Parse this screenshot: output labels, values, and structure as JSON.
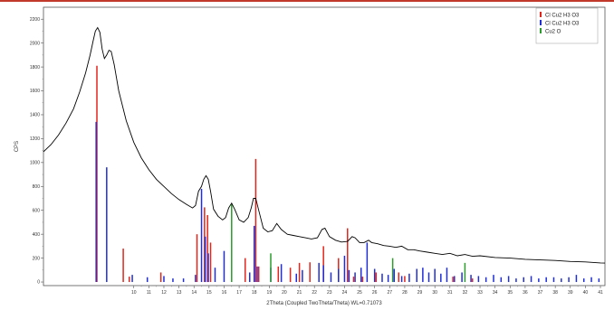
{
  "chart_data": {
    "type": "line",
    "xlabel": "2Theta (Coupled TwoTheta/Theta) WL=0.71073",
    "ylabel": "CPS",
    "xlim": [
      4,
      41.3
    ],
    "ylim": [
      -30,
      2300
    ],
    "xticks": [
      10,
      11,
      12,
      13,
      14,
      15,
      16,
      17,
      18,
      19,
      20,
      21,
      22,
      23,
      24,
      25,
      26,
      27,
      28,
      29,
      30,
      31,
      32,
      33,
      34,
      35,
      36,
      37,
      38,
      39,
      40,
      41
    ],
    "yticks": [
      0,
      200,
      400,
      600,
      800,
      1000,
      1200,
      1400,
      1600,
      1800,
      2000,
      2200
    ],
    "grid": false,
    "legend_position": "top-right",
    "profile": {
      "name": "",
      "color": "#000000",
      "points": [
        [
          4.0,
          1090
        ],
        [
          4.5,
          1150
        ],
        [
          5.0,
          1230
        ],
        [
          5.5,
          1330
        ],
        [
          6.0,
          1450
        ],
        [
          6.4,
          1590
        ],
        [
          6.8,
          1750
        ],
        [
          7.1,
          1900
        ],
        [
          7.3,
          2020
        ],
        [
          7.45,
          2100
        ],
        [
          7.6,
          2130
        ],
        [
          7.75,
          2090
        ],
        [
          7.9,
          1950
        ],
        [
          8.05,
          1870
        ],
        [
          8.2,
          1900
        ],
        [
          8.35,
          1940
        ],
        [
          8.5,
          1930
        ],
        [
          8.7,
          1820
        ],
        [
          9.0,
          1600
        ],
        [
          9.5,
          1350
        ],
        [
          10.0,
          1170
        ],
        [
          10.5,
          1040
        ],
        [
          11.0,
          940
        ],
        [
          11.5,
          860
        ],
        [
          12.0,
          800
        ],
        [
          12.5,
          740
        ],
        [
          13.0,
          690
        ],
        [
          13.5,
          650
        ],
        [
          13.9,
          620
        ],
        [
          14.1,
          640
        ],
        [
          14.3,
          760
        ],
        [
          14.5,
          800
        ],
        [
          14.65,
          860
        ],
        [
          14.8,
          890
        ],
        [
          14.95,
          860
        ],
        [
          15.1,
          760
        ],
        [
          15.3,
          610
        ],
        [
          15.6,
          550
        ],
        [
          15.9,
          520
        ],
        [
          16.1,
          540
        ],
        [
          16.3,
          620
        ],
        [
          16.5,
          660
        ],
        [
          16.7,
          610
        ],
        [
          17.0,
          520
        ],
        [
          17.3,
          500
        ],
        [
          17.6,
          540
        ],
        [
          17.8,
          620
        ],
        [
          17.95,
          700
        ],
        [
          18.1,
          700
        ],
        [
          18.3,
          600
        ],
        [
          18.6,
          450
        ],
        [
          18.9,
          420
        ],
        [
          19.2,
          430
        ],
        [
          19.5,
          490
        ],
        [
          19.8,
          440
        ],
        [
          20.2,
          400
        ],
        [
          20.6,
          390
        ],
        [
          21.0,
          380
        ],
        [
          21.4,
          370
        ],
        [
          21.8,
          360
        ],
        [
          22.2,
          370
        ],
        [
          22.5,
          440
        ],
        [
          22.7,
          450
        ],
        [
          23.0,
          380
        ],
        [
          23.4,
          350
        ],
        [
          23.8,
          335
        ],
        [
          24.2,
          340
        ],
        [
          24.5,
          380
        ],
        [
          24.7,
          370
        ],
        [
          25.0,
          330
        ],
        [
          25.3,
          330
        ],
        [
          25.6,
          350
        ],
        [
          25.8,
          330
        ],
        [
          26.2,
          320
        ],
        [
          26.6,
          305
        ],
        [
          27.0,
          300
        ],
        [
          27.4,
          290
        ],
        [
          27.8,
          300
        ],
        [
          28.2,
          270
        ],
        [
          28.6,
          270
        ],
        [
          29.0,
          260
        ],
        [
          29.5,
          250
        ],
        [
          30.0,
          240
        ],
        [
          30.5,
          230
        ],
        [
          31.0,
          240
        ],
        [
          31.5,
          220
        ],
        [
          32.0,
          230
        ],
        [
          32.5,
          215
        ],
        [
          33.0,
          220
        ],
        [
          34.0,
          205
        ],
        [
          35.0,
          200
        ],
        [
          36.0,
          190
        ],
        [
          37.0,
          185
        ],
        [
          38.0,
          180
        ],
        [
          39.0,
          172
        ],
        [
          40.0,
          168
        ],
        [
          41.0,
          160
        ],
        [
          41.3,
          158
        ]
      ]
    },
    "series": [
      {
        "name": "Cl Cu2 H3 O3",
        "color": "#e3241b",
        "type": "stick",
        "x": [
          7.55,
          9.3,
          9.7,
          11.8,
          14.2,
          14.7,
          14.9,
          15.1,
          17.4,
          18.1,
          18.3,
          19.6,
          20.4,
          21.0,
          21.7,
          22.6,
          23.6,
          24.2,
          24.6,
          25.2,
          26.1,
          27.6,
          28.0,
          31.2,
          32.5
        ],
        "y": [
          1810,
          280,
          45,
          80,
          400,
          625,
          560,
          330,
          200,
          1030,
          130,
          130,
          120,
          160,
          165,
          300,
          200,
          450,
          45,
          45,
          80,
          80,
          50,
          45,
          30
        ]
      },
      {
        "name": "Cl Cu2 H3 O3",
        "color": "#1f2ed6",
        "type": "stick",
        "x": [
          7.5,
          8.2,
          9.9,
          10.9,
          12.0,
          12.6,
          13.3,
          14.1,
          14.5,
          14.75,
          14.95,
          15.4,
          16.0,
          17.7,
          18.0,
          18.2,
          19.1,
          19.8,
          20.8,
          21.2,
          22.3,
          22.6,
          23.1,
          23.6,
          24.0,
          24.3,
          24.7,
          25.1,
          25.5,
          26.0,
          26.5,
          26.9,
          27.3,
          27.8,
          28.3,
          28.8,
          29.2,
          29.6,
          30.0,
          30.4,
          30.8,
          31.3,
          31.8,
          32.4,
          32.9,
          33.4,
          33.9,
          34.4,
          34.9,
          35.4,
          35.9,
          36.4,
          36.9,
          37.4,
          37.9,
          38.4,
          38.9,
          39.4,
          39.9,
          40.4,
          40.9
        ],
        "y": [
          1340,
          960,
          60,
          40,
          50,
          30,
          30,
          60,
          780,
          380,
          240,
          120,
          260,
          80,
          470,
          130,
          120,
          150,
          70,
          100,
          160,
          140,
          80,
          110,
          220,
          100,
          80,
          120,
          330,
          110,
          70,
          60,
          110,
          50,
          70,
          110,
          120,
          80,
          110,
          70,
          120,
          50,
          80,
          60,
          50,
          40,
          60,
          40,
          50,
          30,
          40,
          50,
          30,
          40,
          40,
          30,
          40,
          60,
          30,
          40,
          30
        ]
      },
      {
        "name": "Cu2 O",
        "color": "#2a9d2a",
        "type": "stick",
        "x": [
          16.5,
          19.1,
          27.2,
          32.0
        ],
        "y": [
          650,
          240,
          200,
          160
        ]
      }
    ]
  }
}
